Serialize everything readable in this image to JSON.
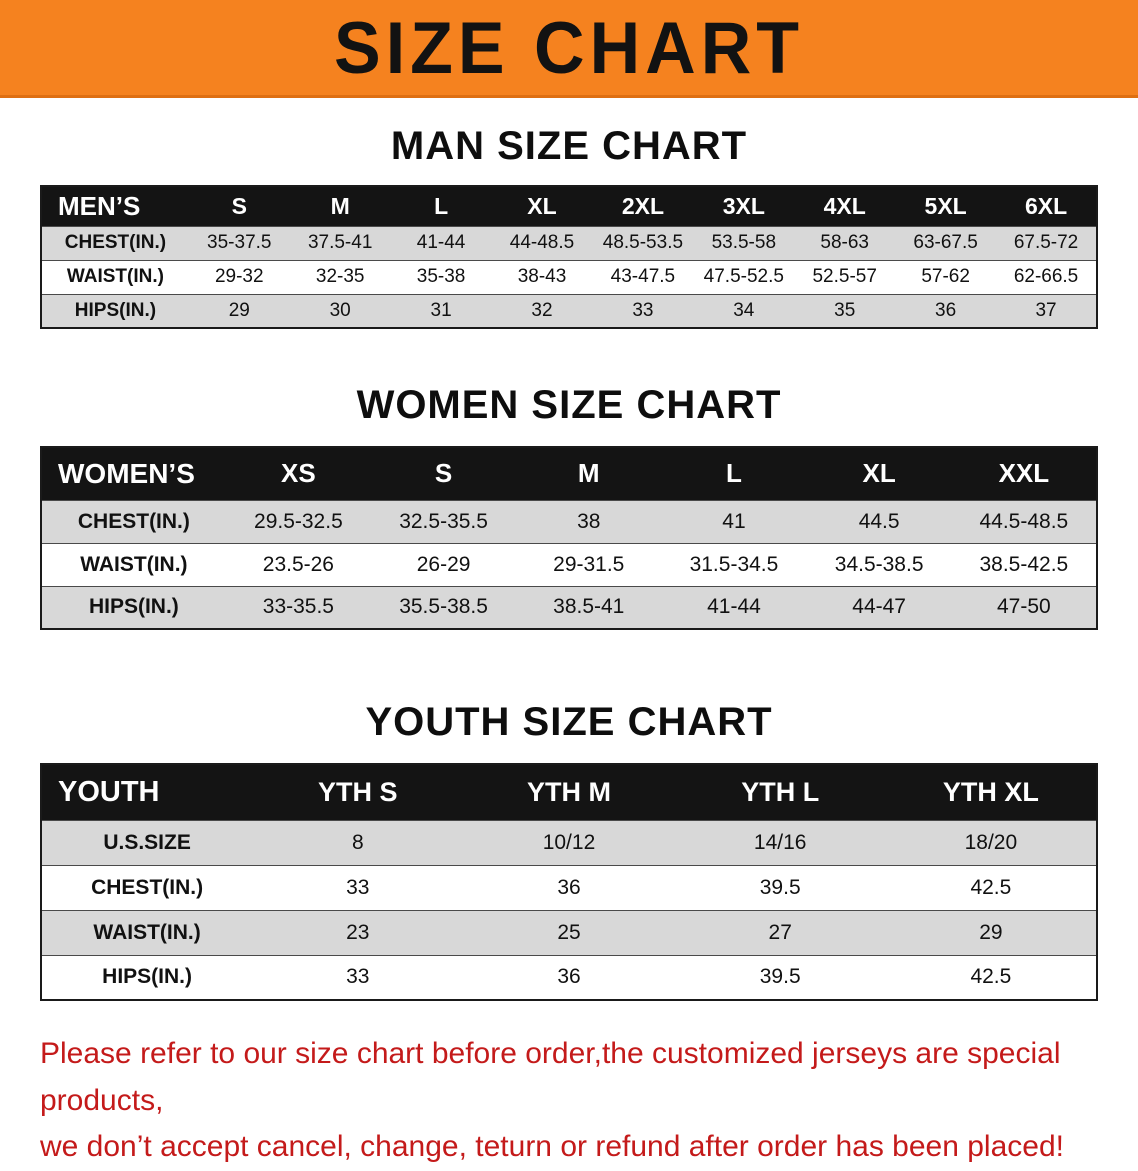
{
  "banner": {
    "title": "SIZE CHART",
    "bg_color": "#F5821F"
  },
  "sections": [
    {
      "heading": "MAN SIZE CHART",
      "table": {
        "header": [
          "MEN’S",
          "S",
          "M",
          "L",
          "XL",
          "2XL",
          "3XL",
          "4XL",
          "5XL",
          "6XL"
        ],
        "rows": [
          [
            "CHEST(IN.)",
            "35-37.5",
            "37.5-41",
            "41-44",
            "44-48.5",
            "48.5-53.5",
            "53.5-58",
            "58-63",
            "63-67.5",
            "67.5-72"
          ],
          [
            "WAIST(IN.)",
            "29-32",
            "32-35",
            "35-38",
            "38-43",
            "43-47.5",
            "47.5-52.5",
            "52.5-57",
            "57-62",
            "62-66.5"
          ],
          [
            "HIPS(IN.)",
            "29",
            "30",
            "31",
            "32",
            "33",
            "34",
            "35",
            "36",
            "37"
          ]
        ]
      }
    },
    {
      "heading": "WOMEN SIZE CHART",
      "table": {
        "header": [
          "WOMEN’S",
          "XS",
          "S",
          "M",
          "L",
          "XL",
          "XXL"
        ],
        "rows": [
          [
            "CHEST(IN.)",
            "29.5-32.5",
            "32.5-35.5",
            "38",
            "41",
            "44.5",
            "44.5-48.5"
          ],
          [
            "WAIST(IN.)",
            "23.5-26",
            "26-29",
            "29-31.5",
            "31.5-34.5",
            "34.5-38.5",
            "38.5-42.5"
          ],
          [
            "HIPS(IN.)",
            "33-35.5",
            "35.5-38.5",
            "38.5-41",
            "41-44",
            "44-47",
            "47-50"
          ]
        ]
      }
    },
    {
      "heading": "YOUTH SIZE CHART",
      "table": {
        "header": [
          "YOUTH",
          "YTH S",
          "YTH M",
          "YTH L",
          "YTH XL"
        ],
        "rows": [
          [
            "U.S.SIZE",
            "8",
            "10/12",
            "14/16",
            "18/20"
          ],
          [
            "CHEST(IN.)",
            "33",
            "36",
            "39.5",
            "42.5"
          ],
          [
            "WAIST(IN.)",
            "23",
            "25",
            "27",
            "29"
          ],
          [
            "HIPS(IN.)",
            "33",
            "36",
            "39.5",
            "42.5"
          ]
        ]
      }
    }
  ],
  "disclaimer": {
    "color": "#C41A1A",
    "lines": [
      "Please refer to our size chart before order,the customized jerseys are special products,",
      "we don’t accept cancel, change, teturn or refund after order has been placed!"
    ]
  }
}
